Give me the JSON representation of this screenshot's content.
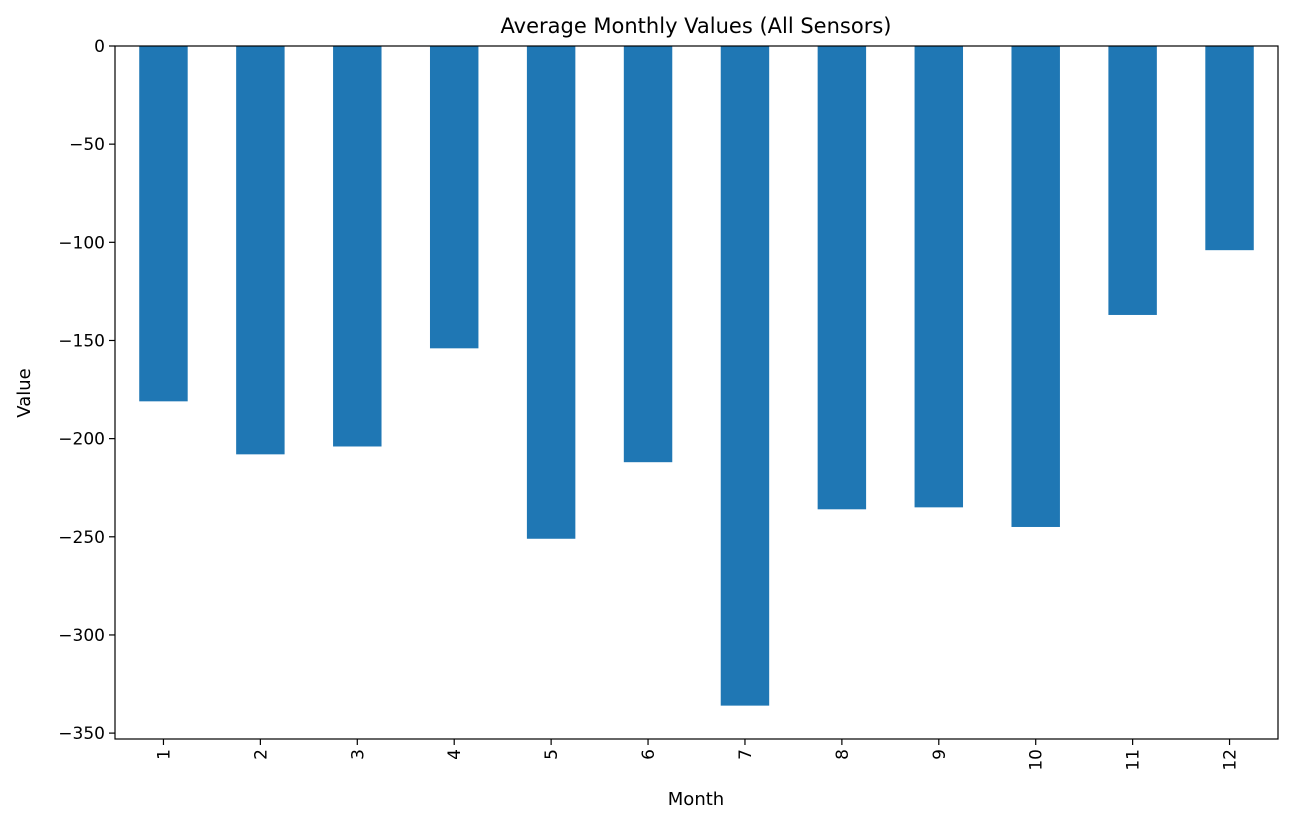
{
  "chart_data": {
    "type": "bar",
    "title": "Average Monthly Values (All Sensors)",
    "xlabel": "Month",
    "ylabel": "Value",
    "categories": [
      "1",
      "2",
      "3",
      "4",
      "5",
      "6",
      "7",
      "8",
      "9",
      "10",
      "11",
      "12"
    ],
    "values": [
      -181,
      -208,
      -204,
      -154,
      -251,
      -212,
      -336,
      -236,
      -235,
      -245,
      -137,
      -104
    ],
    "ylim": [
      -353,
      0
    ],
    "yticks": [
      0,
      -50,
      -100,
      -150,
      -200,
      -250,
      -300,
      -350
    ],
    "ytick_labels": [
      "0",
      "−50",
      "−100",
      "−150",
      "−200",
      "−250",
      "−300",
      "−350"
    ],
    "x_tick_rotation": "vertical",
    "grid": false,
    "legend": "none",
    "bar_color": "#1f77b4"
  }
}
